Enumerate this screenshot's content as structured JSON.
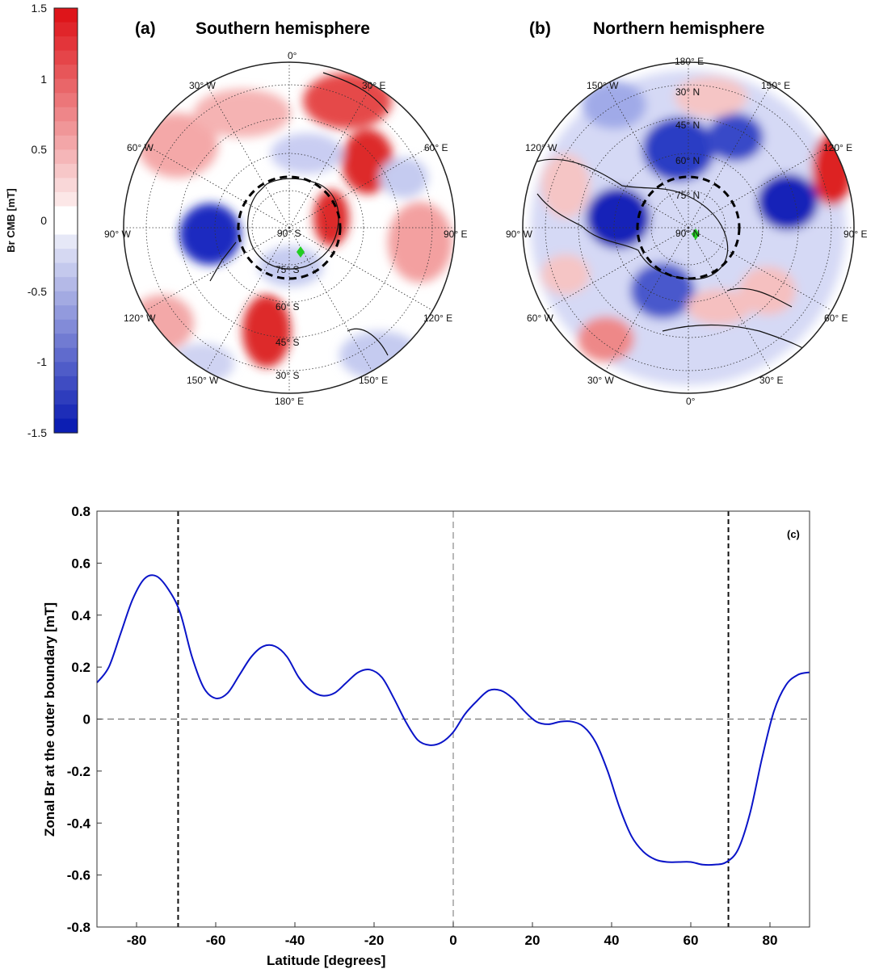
{
  "colorbar": {
    "label": "Br CMB [mT]",
    "range": [
      -1.5,
      1.5
    ],
    "ticks": [
      "1.5",
      "1",
      "0.5",
      "0",
      "-0.5",
      "-1",
      "-1.5"
    ],
    "color_max": "#dd0d12",
    "color_min": "#0416b0"
  },
  "maps": [
    {
      "panel": "(a)",
      "title": "Southern hemisphere",
      "pole_label": "90° S",
      "lat_labels": [
        "75° S",
        "60° S",
        "45° S",
        "30° S"
      ],
      "lon_labels": [
        "0°",
        "30° E",
        "60° E",
        "90° E",
        "120° E",
        "150° E",
        "180° E",
        "150° W",
        "120° W",
        "90° W",
        "60° W",
        "30° W"
      ],
      "marker_color": "#22cc22"
    },
    {
      "panel": "(b)",
      "title": "Northern hemisphere",
      "pole_label": "90° N",
      "lat_labels": [
        "75° N",
        "60° N",
        "45° N",
        "30° N"
      ],
      "lon_labels": [
        "180° E",
        "150° E",
        "120° E",
        "90° E",
        "60° E",
        "30° E",
        "0°",
        "30° W",
        "60° W",
        "90° W",
        "120° W",
        "150° W"
      ],
      "marker_color": "#22cc22"
    }
  ],
  "chart_data": {
    "type": "line",
    "panel_label": "(c)",
    "xlabel": "Latitude [degrees]",
    "ylabel": "Zonal Br at the outer boundary [mT]",
    "xlim": [
      -90,
      90
    ],
    "ylim": [
      -0.8,
      0.8
    ],
    "xticks": [
      -80,
      -60,
      -40,
      -20,
      0,
      20,
      40,
      60,
      80
    ],
    "yticks": [
      0.8,
      0.6,
      0.4,
      0.2,
      0,
      -0.2,
      -0.4,
      -0.6,
      -0.8
    ],
    "line_color": "#0a14c8",
    "reference_lines": {
      "vertical": [
        -69.5,
        0,
        69.5
      ],
      "horizontal": [
        0
      ]
    },
    "series": [
      {
        "x": [
          -90,
          -87,
          -84,
          -81,
          -78,
          -75,
          -72,
          -69,
          -66,
          -63,
          -60,
          -57,
          -54,
          -51,
          -48,
          -45,
          -42,
          -39,
          -36,
          -33,
          -30,
          -27,
          -24,
          -21,
          -18,
          -15,
          -12,
          -9,
          -6,
          -3,
          0,
          3,
          6,
          9,
          12,
          15,
          18,
          21,
          24,
          27,
          30,
          33,
          36,
          39,
          42,
          45,
          48,
          51,
          54,
          57,
          60,
          63,
          66,
          69,
          72,
          75,
          78,
          81,
          84,
          87,
          90
        ],
        "y": [
          0.14,
          0.2,
          0.33,
          0.46,
          0.54,
          0.55,
          0.5,
          0.41,
          0.24,
          0.12,
          0.08,
          0.1,
          0.17,
          0.24,
          0.28,
          0.28,
          0.24,
          0.16,
          0.11,
          0.09,
          0.1,
          0.14,
          0.18,
          0.19,
          0.16,
          0.08,
          -0.01,
          -0.08,
          -0.1,
          -0.09,
          -0.05,
          0.02,
          0.07,
          0.11,
          0.11,
          0.08,
          0.03,
          -0.01,
          -0.02,
          -0.01,
          -0.01,
          -0.03,
          -0.09,
          -0.2,
          -0.34,
          -0.45,
          -0.51,
          -0.54,
          -0.55,
          -0.55,
          -0.55,
          -0.56,
          -0.56,
          -0.55,
          -0.5,
          -0.36,
          -0.15,
          0.03,
          0.13,
          0.17,
          0.18
        ]
      }
    ]
  }
}
